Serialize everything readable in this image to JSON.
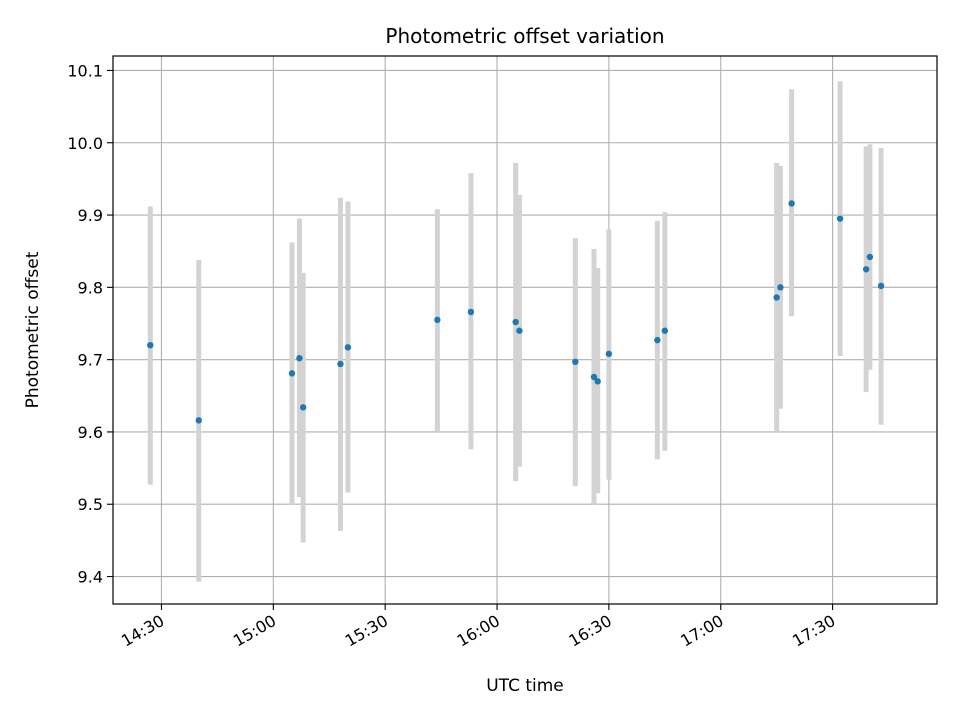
{
  "chart_data": {
    "type": "scatter",
    "title": "Photometric offset variation",
    "xlabel": "UTC time",
    "ylabel": "Photometric offset",
    "x_ticks": [
      "14:30",
      "15:00",
      "15:30",
      "16:00",
      "16:30",
      "17:00",
      "17:30"
    ],
    "y_ticks": [
      "9.4",
      "9.5",
      "9.6",
      "9.7",
      "9.8",
      "9.9",
      "10.0",
      "10.1"
    ],
    "xlim": [
      "14:17",
      "17:58"
    ],
    "ylim": [
      9.362,
      10.12
    ],
    "grid": true,
    "colors": {
      "point": "#1f77b4",
      "errorbar": "#d3d3d3",
      "grid": "#b0b0b0"
    },
    "points": [
      {
        "t": "14:27",
        "y": 9.72,
        "lo": 9.527,
        "hi": 9.912
      },
      {
        "t": "14:40",
        "y": 9.616,
        "lo": 9.393,
        "hi": 9.838
      },
      {
        "t": "15:05",
        "y": 9.681,
        "lo": 9.5,
        "hi": 9.862
      },
      {
        "t": "15:07",
        "y": 9.702,
        "lo": 9.51,
        "hi": 9.895
      },
      {
        "t": "15:08",
        "y": 9.634,
        "lo": 9.447,
        "hi": 9.82
      },
      {
        "t": "15:18",
        "y": 9.694,
        "lo": 9.463,
        "hi": 9.924
      },
      {
        "t": "15:20",
        "y": 9.717,
        "lo": 9.516,
        "hi": 9.919
      },
      {
        "t": "15:44",
        "y": 9.755,
        "lo": 9.6,
        "hi": 9.908
      },
      {
        "t": "15:53",
        "y": 9.766,
        "lo": 9.576,
        "hi": 9.958
      },
      {
        "t": "16:05",
        "y": 9.752,
        "lo": 9.532,
        "hi": 9.972
      },
      {
        "t": "16:06",
        "y": 9.74,
        "lo": 9.552,
        "hi": 9.928
      },
      {
        "t": "16:21",
        "y": 9.697,
        "lo": 9.525,
        "hi": 9.868
      },
      {
        "t": "16:26",
        "y": 9.676,
        "lo": 9.5,
        "hi": 9.853
      },
      {
        "t": "16:27",
        "y": 9.67,
        "lo": 9.515,
        "hi": 9.827
      },
      {
        "t": "16:30",
        "y": 9.708,
        "lo": 9.534,
        "hi": 9.88
      },
      {
        "t": "16:43",
        "y": 9.727,
        "lo": 9.562,
        "hi": 9.892
      },
      {
        "t": "16:45",
        "y": 9.74,
        "lo": 9.574,
        "hi": 9.904
      },
      {
        "t": "17:15",
        "y": 9.786,
        "lo": 9.6,
        "hi": 9.972
      },
      {
        "t": "17:16",
        "y": 9.8,
        "lo": 9.632,
        "hi": 9.968
      },
      {
        "t": "17:19",
        "y": 9.916,
        "lo": 9.76,
        "hi": 10.074
      },
      {
        "t": "17:32",
        "y": 9.895,
        "lo": 9.705,
        "hi": 10.085
      },
      {
        "t": "17:39",
        "y": 9.825,
        "lo": 9.655,
        "hi": 9.995
      },
      {
        "t": "17:40",
        "y": 9.842,
        "lo": 9.686,
        "hi": 9.998
      },
      {
        "t": "17:43",
        "y": 9.802,
        "lo": 9.61,
        "hi": 9.993
      }
    ]
  }
}
